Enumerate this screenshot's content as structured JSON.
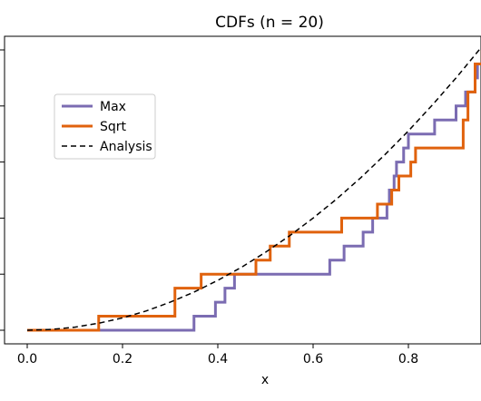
{
  "chart_data": {
    "type": "line",
    "title": "CDFs (n = 20)",
    "xlabel": "x",
    "ylabel": "",
    "xlim": [
      -0.05,
      0.95
    ],
    "ylim": [
      -0.05,
      1.0
    ],
    "x_ticks": [
      0.0,
      0.2,
      0.4,
      0.6,
      0.8
    ],
    "x_tick_labels": [
      "0.0",
      "0.2",
      "0.4",
      "0.6",
      "0.8"
    ],
    "y_ticks": [
      0.0,
      0.2,
      0.4,
      0.6,
      0.8,
      1.0
    ],
    "grid": false,
    "legend_position": "left",
    "series": [
      {
        "name": "Max",
        "color": "#7b6cb2",
        "style": "step",
        "points": [
          [
            0.0,
            0.0
          ],
          [
            0.35,
            0.0
          ],
          [
            0.35,
            0.05
          ],
          [
            0.395,
            0.05
          ],
          [
            0.395,
            0.1
          ],
          [
            0.415,
            0.1
          ],
          [
            0.415,
            0.15
          ],
          [
            0.435,
            0.15
          ],
          [
            0.435,
            0.2
          ],
          [
            0.635,
            0.2
          ],
          [
            0.635,
            0.25
          ],
          [
            0.665,
            0.25
          ],
          [
            0.665,
            0.3
          ],
          [
            0.705,
            0.3
          ],
          [
            0.705,
            0.35
          ],
          [
            0.725,
            0.35
          ],
          [
            0.725,
            0.4
          ],
          [
            0.755,
            0.4
          ],
          [
            0.755,
            0.45
          ],
          [
            0.76,
            0.45
          ],
          [
            0.76,
            0.5
          ],
          [
            0.77,
            0.5
          ],
          [
            0.77,
            0.55
          ],
          [
            0.775,
            0.55
          ],
          [
            0.775,
            0.6
          ],
          [
            0.79,
            0.6
          ],
          [
            0.79,
            0.65
          ],
          [
            0.8,
            0.65
          ],
          [
            0.8,
            0.7
          ],
          [
            0.855,
            0.7
          ],
          [
            0.855,
            0.75
          ],
          [
            0.9,
            0.75
          ],
          [
            0.9,
            0.8
          ],
          [
            0.92,
            0.8
          ],
          [
            0.92,
            0.85
          ],
          [
            0.94,
            0.85
          ],
          [
            0.94,
            0.9
          ],
          [
            0.945,
            0.9
          ],
          [
            0.945,
            0.95
          ],
          [
            0.955,
            0.95
          ]
        ]
      },
      {
        "name": "Sqrt",
        "color": "#e0620d",
        "style": "step",
        "points": [
          [
            0.0,
            0.0
          ],
          [
            0.15,
            0.0
          ],
          [
            0.15,
            0.05
          ],
          [
            0.31,
            0.05
          ],
          [
            0.31,
            0.15
          ],
          [
            0.365,
            0.15
          ],
          [
            0.365,
            0.2
          ],
          [
            0.48,
            0.2
          ],
          [
            0.48,
            0.25
          ],
          [
            0.51,
            0.25
          ],
          [
            0.51,
            0.3
          ],
          [
            0.55,
            0.3
          ],
          [
            0.55,
            0.35
          ],
          [
            0.66,
            0.35
          ],
          [
            0.66,
            0.4
          ],
          [
            0.735,
            0.4
          ],
          [
            0.735,
            0.45
          ],
          [
            0.765,
            0.45
          ],
          [
            0.765,
            0.5
          ],
          [
            0.78,
            0.5
          ],
          [
            0.78,
            0.55
          ],
          [
            0.805,
            0.55
          ],
          [
            0.805,
            0.6
          ],
          [
            0.815,
            0.6
          ],
          [
            0.815,
            0.65
          ],
          [
            0.915,
            0.65
          ],
          [
            0.915,
            0.75
          ],
          [
            0.925,
            0.75
          ],
          [
            0.925,
            0.85
          ],
          [
            0.94,
            0.85
          ],
          [
            0.94,
            0.95
          ],
          [
            0.955,
            0.95
          ],
          [
            0.955,
            1.0
          ]
        ]
      },
      {
        "name": "Analysis",
        "color": "#000000",
        "style": "dashed",
        "points": [
          [
            0.0,
            0.0
          ],
          [
            0.05,
            0.0028
          ],
          [
            0.1,
            0.011
          ],
          [
            0.15,
            0.025
          ],
          [
            0.2,
            0.044
          ],
          [
            0.25,
            0.069
          ],
          [
            0.3,
            0.1
          ],
          [
            0.35,
            0.136
          ],
          [
            0.4,
            0.178
          ],
          [
            0.45,
            0.225
          ],
          [
            0.5,
            0.278
          ],
          [
            0.55,
            0.336
          ],
          [
            0.6,
            0.4
          ],
          [
            0.65,
            0.469
          ],
          [
            0.7,
            0.544
          ],
          [
            0.75,
            0.625
          ],
          [
            0.8,
            0.711
          ],
          [
            0.85,
            0.803
          ],
          [
            0.9,
            0.9
          ],
          [
            0.95,
            1.003
          ]
        ]
      }
    ]
  }
}
